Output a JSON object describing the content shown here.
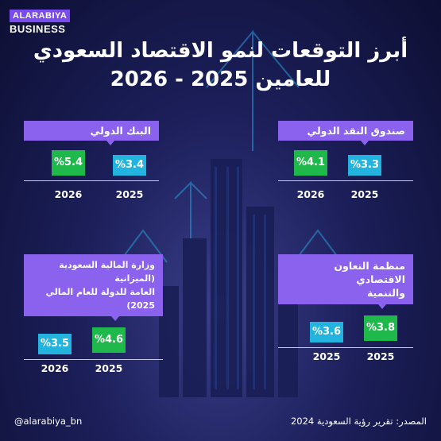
{
  "brand": {
    "line1": "ALARABIYA",
    "line2": "BUSINESS"
  },
  "title": {
    "line1": "أبرز التوقعات لنمو الاقتصاد السعودي",
    "line2": "للعامين 2025 - 2026"
  },
  "panels": {
    "world_bank": {
      "title": "البنك الدولي",
      "year_a": "2026",
      "year_b": "2025",
      "val_a": "%5.4",
      "val_b": "%3.4"
    },
    "imf": {
      "title": "صندوق النقد الدولي",
      "year_a": "2026",
      "year_b": "2025",
      "val_a": "%4.1",
      "val_b": "%3.3"
    },
    "mof": {
      "title_line1": "وزارة المالية السعودية (الميزانية",
      "title_line2": "العامة للدولة للعام المالي 2025)",
      "year_a": "2026",
      "year_b": "2025",
      "val_a": "%3.5",
      "val_b": "%4.6"
    },
    "oecd": {
      "title_line1": "منظمة التعاون الاقتصادي",
      "title_line2": "والتنمية",
      "year_a": "2025",
      "year_b": "2025",
      "val_a": "%3.6",
      "val_b": "%3.8"
    }
  },
  "footer": {
    "handle": "@alarabiya_bn",
    "source": "المصدر: تقرير رؤية السعودية 2024"
  },
  "colors": {
    "purple": "#8b62ee",
    "green": "#1fb84b",
    "blue": "#22b4de"
  }
}
